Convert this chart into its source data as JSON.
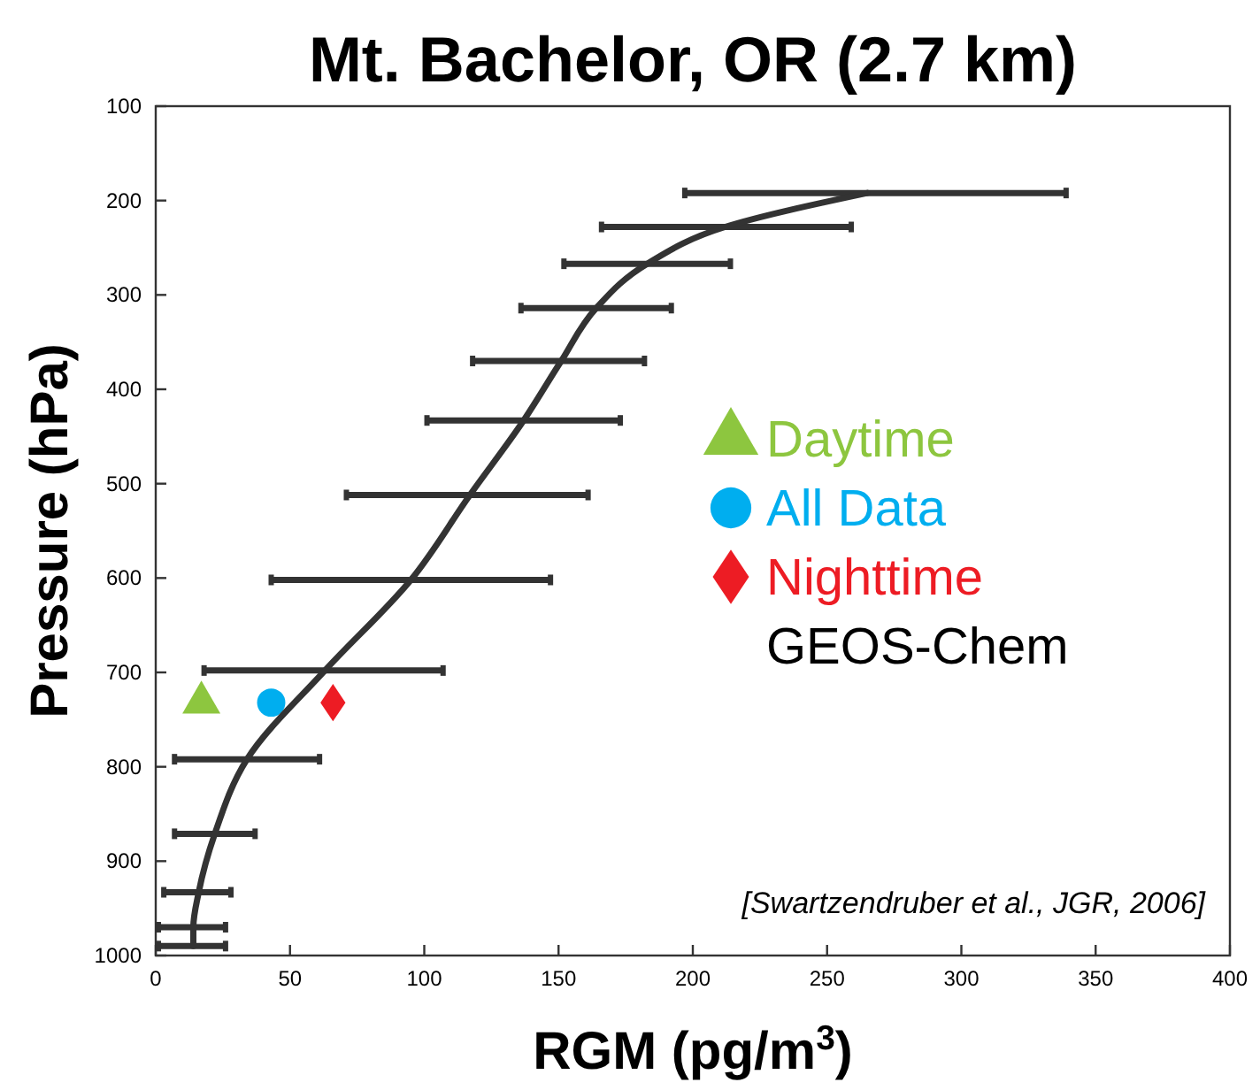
{
  "chart_data": {
    "type": "line",
    "title": "Mt. Bachelor, OR (2.7 km)",
    "xlabel": "RGM (pg/m$^{3}$)",
    "ylabel": "Pressure (hPa)",
    "xlim": [
      0,
      400
    ],
    "xticks": [
      0,
      50,
      100,
      150,
      200,
      250,
      300,
      350,
      400
    ],
    "ylim": [
      1000,
      100
    ],
    "yticks": [
      100,
      200,
      300,
      400,
      500,
      600,
      700,
      800,
      900,
      1000
    ],
    "grid": false,
    "legend": "right",
    "annotations": [
      "[Swartzendruber et al., JGR, 2006]"
    ],
    "series": [
      {
        "name": "Daytime",
        "type": "scatter",
        "marker": "triangle",
        "color": "#8dc63f",
        "x": [
          17
        ],
        "values": [
          732
        ]
      },
      {
        "name": "All Data",
        "type": "scatter",
        "marker": "circle",
        "color": "#00aeef",
        "x": [
          43
        ],
        "values": [
          732
        ]
      },
      {
        "name": "Nighttime",
        "type": "scatter",
        "marker": "diamond",
        "color": "#ed1c24",
        "x": [
          66
        ],
        "values": [
          732
        ]
      },
      {
        "name": "GEOS-Chem",
        "marker": "none",
        "line_style": "solid",
        "color": "#333333",
        "x": [
          265,
          212,
          183,
          164,
          151,
          137,
          117,
          95,
          63,
          34,
          22,
          16,
          14,
          14
        ],
        "values": [
          192,
          228,
          267,
          314,
          370,
          433,
          512,
          602,
          698,
          792,
          871,
          933,
          970,
          990
        ],
        "xerrors": [
          [
            197,
            339
          ],
          [
            166,
            259
          ],
          [
            152,
            214
          ],
          [
            136,
            192
          ],
          [
            118,
            182
          ],
          [
            101,
            173
          ],
          [
            71,
            161
          ],
          [
            43,
            147
          ],
          [
            18,
            107
          ],
          [
            7,
            61
          ],
          [
            7,
            37
          ],
          [
            3,
            28
          ],
          [
            1,
            26
          ],
          [
            1,
            26
          ]
        ]
      }
    ]
  }
}
